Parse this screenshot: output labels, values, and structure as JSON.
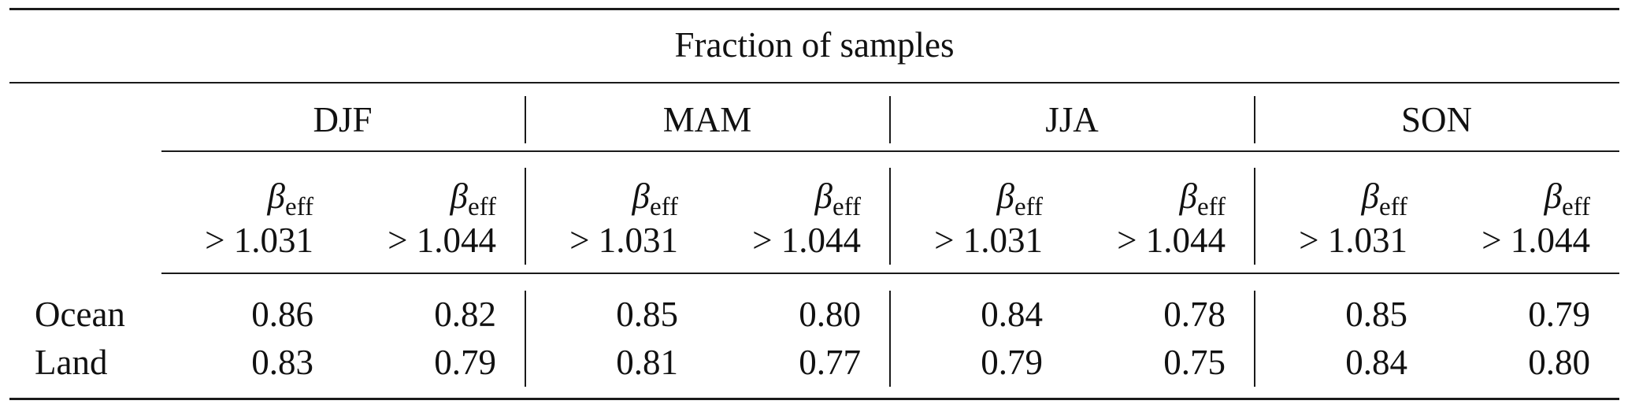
{
  "table": {
    "title": "Fraction of samples",
    "seasons": [
      "DJF",
      "MAM",
      "JJA",
      "SON"
    ],
    "metric_symbol": "β",
    "metric_subscript": "eff",
    "thresholds": [
      "> 1.031",
      "> 1.044"
    ],
    "rows": [
      {
        "label": "Ocean",
        "values": [
          "0.86",
          "0.82",
          "0.85",
          "0.80",
          "0.84",
          "0.78",
          "0.85",
          "0.79"
        ]
      },
      {
        "label": "Land",
        "values": [
          "0.83",
          "0.79",
          "0.81",
          "0.77",
          "0.79",
          "0.75",
          "0.84",
          "0.80"
        ]
      }
    ]
  }
}
